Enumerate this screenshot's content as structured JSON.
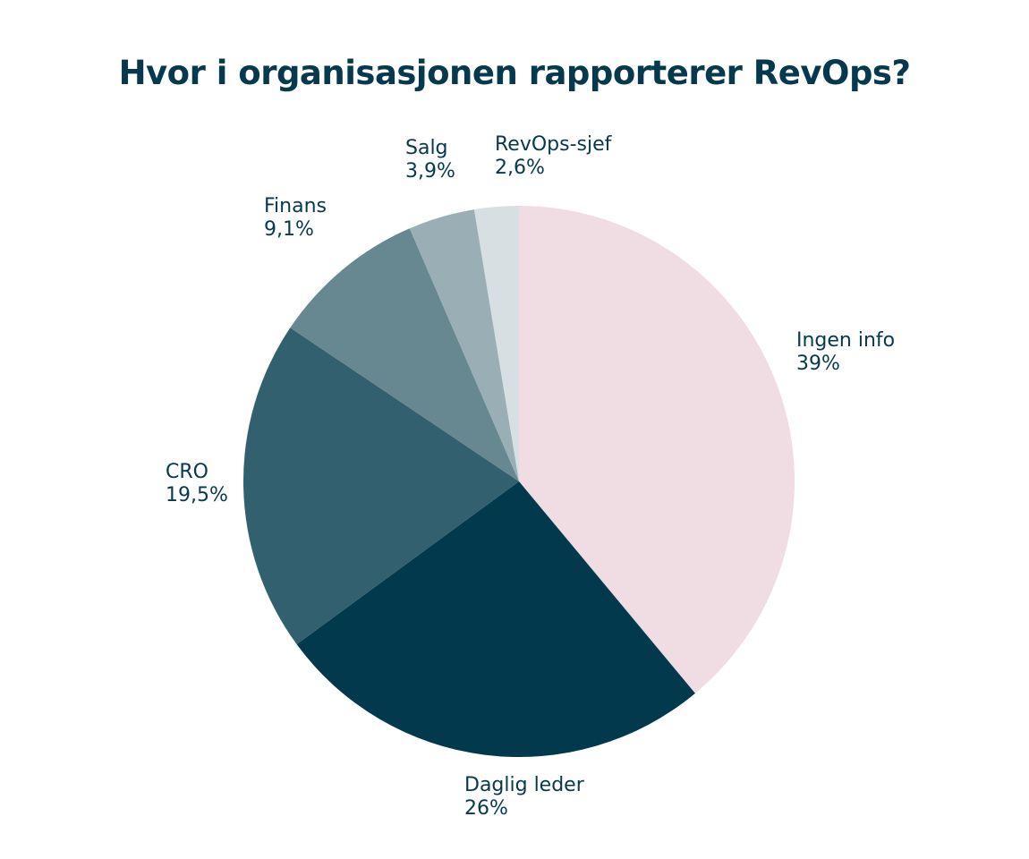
{
  "chart_data": {
    "type": "pie",
    "title": "Hvor i organisasjonen rapporterer RevOps?",
    "start_angle_deg": 0,
    "direction": "clockwise",
    "slices": [
      {
        "label": "Ingen info",
        "value": 39,
        "display": "39%",
        "color": "#f0dce3"
      },
      {
        "label": "Daglig leder",
        "value": 26,
        "display": "26%",
        "color": "#02394d"
      },
      {
        "label": "CRO",
        "value": 19.5,
        "display": "19,5%",
        "color": "#33606f"
      },
      {
        "label": "Finans",
        "value": 9.1,
        "display": "9,1%",
        "color": "#678891"
      },
      {
        "label": "Salg",
        "value": 3.9,
        "display": "3,9%",
        "color": "#9aafb5"
      },
      {
        "label": "RevOps-sjef",
        "value": 2.6,
        "display": "2,6%",
        "color": "#d7dfe2"
      }
    ]
  },
  "theme": {
    "text_color": "#06394d",
    "background": "#ffffff"
  }
}
